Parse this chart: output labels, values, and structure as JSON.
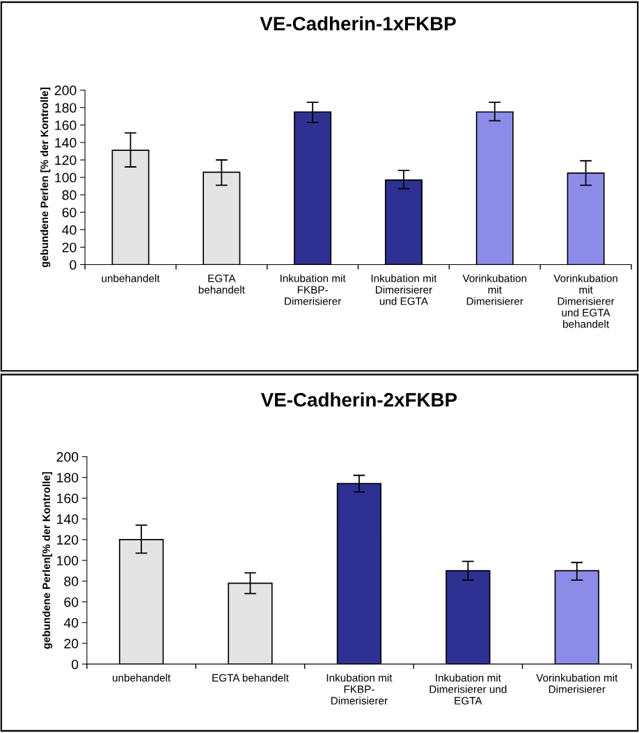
{
  "chart_data": [
    {
      "type": "bar",
      "title": "VE-Cadherin-1xFKBP",
      "ylabel": "gebundene Perlen [% der Kontrolle]",
      "categories": [
        "unbehandelt",
        "EGTA\nbehandelt",
        "Inkubation mit\nFKBP-\nDimerisierer",
        "Inkubation mit\nDimerisierer\nund EGTA",
        "Vorinkubation\nmit\nDimerisierer",
        "Vorinkubation\nmit\nDimerisierer\nund EGTA\nbehandelt"
      ],
      "values": [
        131,
        106,
        175,
        97,
        175,
        105
      ],
      "errors": [
        [
          112,
          151
        ],
        [
          91,
          120
        ],
        [
          163,
          186
        ],
        [
          87,
          108
        ],
        [
          165,
          186
        ],
        [
          91,
          119
        ]
      ],
      "colors": [
        "#e4e4e4",
        "#e4e4e4",
        "#2e3192",
        "#2e3192",
        "#8c8ce8",
        "#8c8ce8"
      ],
      "ylim": [
        0,
        200
      ],
      "yticks": [
        0,
        20,
        40,
        60,
        80,
        100,
        120,
        140,
        160,
        180,
        200
      ],
      "grid": false,
      "legend": false
    },
    {
      "type": "bar",
      "title": "VE-Cadherin-2xFKBP",
      "ylabel": "gebundene Perlen[% der Kontrolle]",
      "categories": [
        "unbehandelt",
        "EGTA behandelt",
        "Inkubation mit\nFKBP-\nDimerisierer",
        "Inkubation mit\nDimerisierer und\nEGTA",
        "Vorinkubation mit\nDimerisierer"
      ],
      "values": [
        120,
        78,
        174,
        90,
        90
      ],
      "errors": [
        [
          107,
          134
        ],
        [
          68,
          88
        ],
        [
          166,
          182
        ],
        [
          81,
          99
        ],
        [
          81,
          98
        ]
      ],
      "colors": [
        "#e4e4e4",
        "#e4e4e4",
        "#2e3192",
        "#2e3192",
        "#8c8ce8"
      ],
      "ylim": [
        0,
        200
      ],
      "yticks": [
        0,
        20,
        40,
        60,
        80,
        100,
        120,
        140,
        160,
        180,
        200
      ],
      "grid": false,
      "legend": false
    }
  ]
}
